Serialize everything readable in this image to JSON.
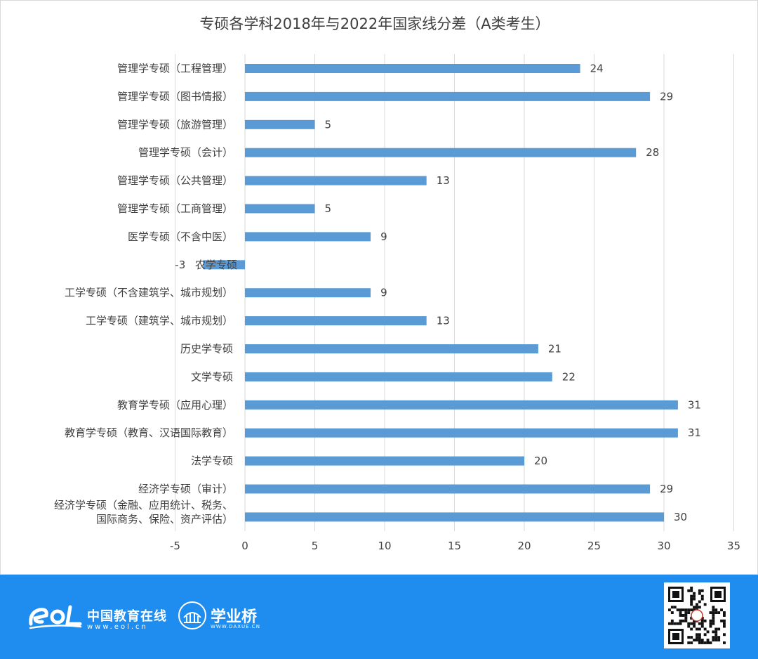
{
  "chart_data": {
    "type": "bar",
    "orientation": "horizontal",
    "title": "专硕各学科2018年与2022年国家线分差（A类考生）",
    "categories": [
      [
        "管理学专硕（工程管理）"
      ],
      [
        "管理学专硕（图书情报）"
      ],
      [
        "管理学专硕（旅游管理）"
      ],
      [
        "管理学专硕（会计）"
      ],
      [
        "管理学专硕（公共管理）"
      ],
      [
        "管理学专硕（工商管理）"
      ],
      [
        "医学专硕（不含中医）"
      ],
      [
        "农学专硕"
      ],
      [
        "工学专硕（不含建筑学、城市规划）"
      ],
      [
        "工学专硕（建筑学、城市规划）"
      ],
      [
        "历史学专硕"
      ],
      [
        "文学专硕"
      ],
      [
        "教育学专硕（应用心理）"
      ],
      [
        "教育学专硕（教育、汉语国际教育）"
      ],
      [
        "法学专硕"
      ],
      [
        "经济学专硕（审计）"
      ],
      [
        "经济学专硕（金融、应用统计、税务、",
        "国际商务、保险、资产评估）"
      ]
    ],
    "values": [
      24,
      29,
      5,
      28,
      13,
      5,
      9,
      -3,
      9,
      13,
      21,
      22,
      31,
      31,
      20,
      29,
      30
    ],
    "xlim": [
      -5,
      35
    ],
    "xticks": [
      -5,
      0,
      5,
      10,
      15,
      20,
      25,
      30,
      35
    ],
    "grid": "vertical",
    "bar_color": "#5b9bd5",
    "legend": "none"
  },
  "footer": {
    "eol_name": "中国教育在线",
    "eol_url": "www.eol.cn",
    "daxue_name": "学业桥",
    "daxue_url": "WWW.DAXUE.CN",
    "background": "#1f8cef"
  }
}
